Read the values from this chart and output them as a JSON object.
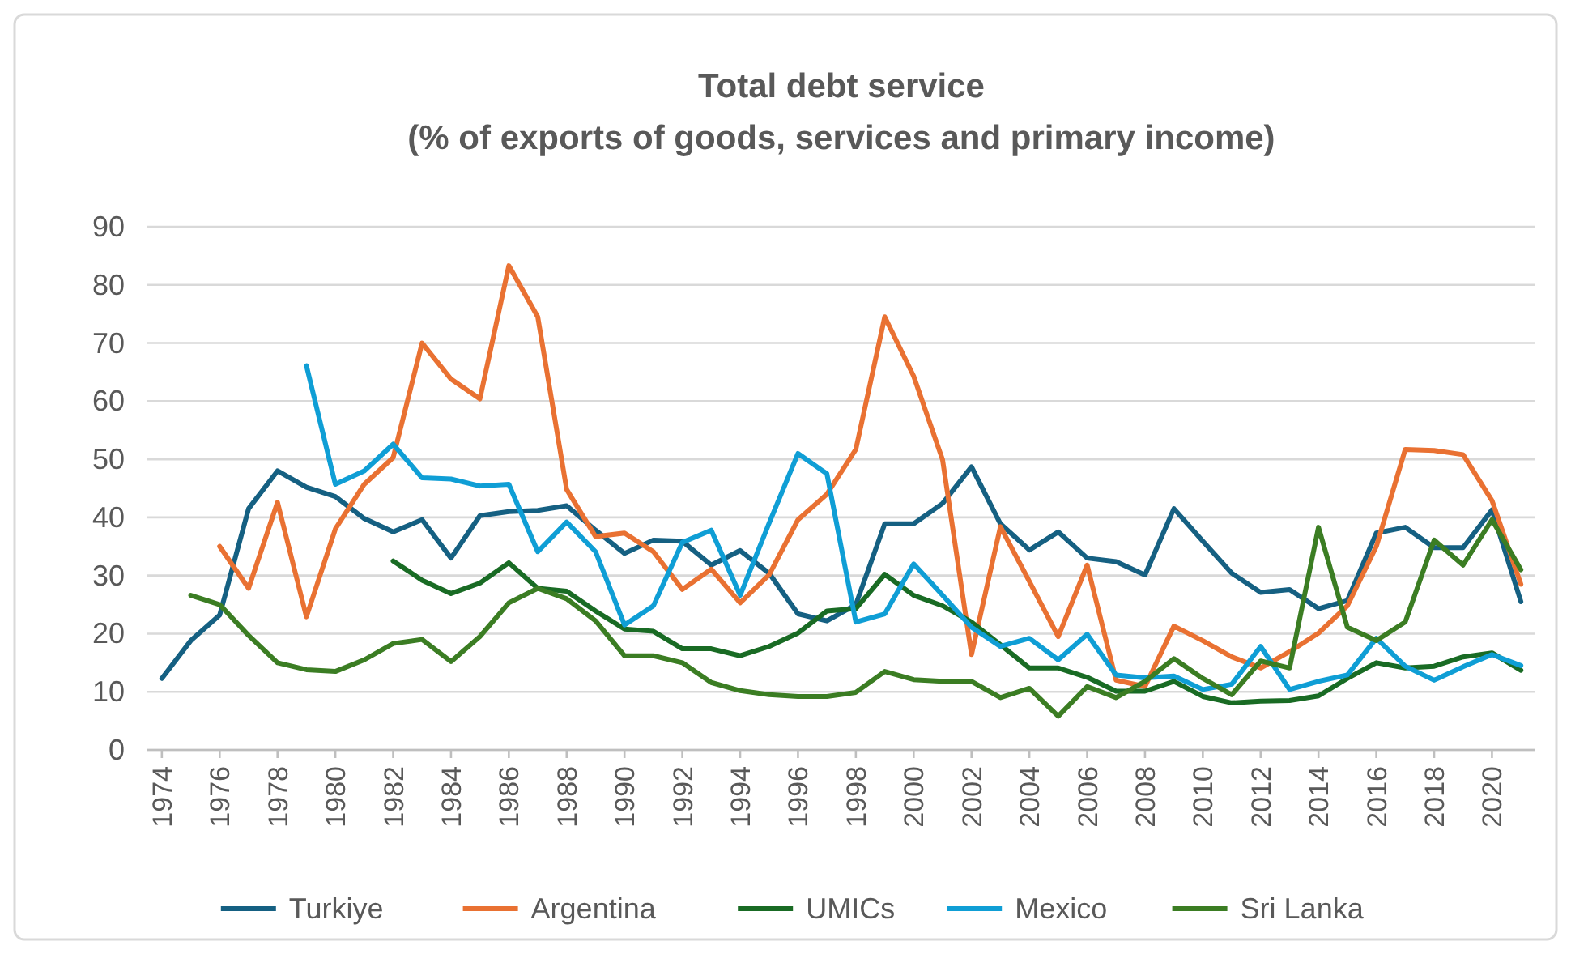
{
  "chart_data": {
    "type": "line",
    "title": "Total debt service\n(% of exports of goods, services and primary income)",
    "x": [
      1974,
      1975,
      1976,
      1977,
      1978,
      1979,
      1980,
      1981,
      1982,
      1983,
      1984,
      1985,
      1986,
      1987,
      1988,
      1989,
      1990,
      1991,
      1992,
      1993,
      1994,
      1995,
      1996,
      1997,
      1998,
      1999,
      2000,
      2001,
      2002,
      2003,
      2004,
      2005,
      2006,
      2007,
      2008,
      2009,
      2010,
      2011,
      2012,
      2013,
      2014,
      2015,
      2016,
      2017,
      2018,
      2019,
      2020,
      2021
    ],
    "xlim": [
      1973.5,
      2021.5
    ],
    "xticks": [
      1974,
      1976,
      1978,
      1980,
      1982,
      1984,
      1986,
      1988,
      1990,
      1992,
      1994,
      1996,
      1998,
      2000,
      2002,
      2004,
      2006,
      2008,
      2010,
      2012,
      2014,
      2016,
      2018,
      2020
    ],
    "ylim": [
      0,
      90
    ],
    "yticks": [
      0,
      10,
      20,
      30,
      40,
      50,
      60,
      70,
      80,
      90
    ],
    "grid": "y",
    "legend": "bottom",
    "marker": "none",
    "line_style": "solid",
    "series": [
      {
        "name": "Turkiye",
        "color": "#156082",
        "values": [
          12.3,
          18.8,
          23.2,
          41.5,
          48,
          45.2,
          43.6,
          39.8,
          37.5,
          39.6,
          33,
          40.3,
          41,
          41.2,
          42,
          37.8,
          33.8,
          36.1,
          35.9,
          31.8,
          34.3,
          30.4,
          23.4,
          22.2,
          25,
          38.9,
          38.9,
          42.4,
          48.7,
          38.9,
          34.4,
          37.5,
          33,
          32.4,
          30.1,
          41.5,
          35.9,
          30.4,
          27.1,
          27.6,
          24.3,
          25.7,
          37.3,
          38.3,
          34.8,
          34.8,
          41.3,
          25.5
        ]
      },
      {
        "name": "Argentina",
        "color": "#e97132",
        "values": [
          null,
          null,
          35,
          27.8,
          42.6,
          22.9,
          38,
          45.7,
          50.3,
          70,
          63.8,
          60.4,
          83.3,
          74.5,
          44.8,
          36.7,
          37.3,
          34.1,
          27.6,
          31.1,
          25.3,
          30.1,
          39.6,
          44,
          51.7,
          74.5,
          64.3,
          49.9,
          16.4,
          38.4,
          29,
          19.5,
          31.8,
          12,
          10.9,
          21.3,
          18.8,
          16,
          14.1,
          16.9,
          20.1,
          24.8,
          35,
          51.7,
          51.5,
          50.8,
          42.9,
          28.5
        ]
      },
      {
        "name": "UMICs",
        "color": "#196b24",
        "values": [
          null,
          null,
          null,
          null,
          null,
          null,
          null,
          null,
          32.5,
          29.2,
          26.9,
          28.7,
          32.2,
          27.8,
          27.3,
          23.9,
          20.8,
          20.4,
          17.4,
          17.4,
          16.2,
          17.8,
          20.1,
          23.9,
          24.3,
          30.2,
          26.6,
          24.8,
          22,
          18.1,
          14.1,
          14.1,
          12.5,
          10.1,
          10.1,
          11.8,
          9.2,
          8.1,
          8.4,
          8.5,
          9.3,
          12.3,
          15,
          14.1,
          14.4,
          16,
          16.7,
          13.7
        ]
      },
      {
        "name": "Mexico",
        "color": "#0f9ed5",
        "values": [
          null,
          null,
          null,
          null,
          null,
          66.1,
          45.7,
          48,
          52.6,
          46.8,
          46.6,
          45.4,
          45.7,
          34.1,
          39.2,
          34.1,
          21.5,
          24.8,
          35.7,
          37.8,
          26.6,
          39,
          51,
          47.5,
          22,
          23.4,
          32,
          26.6,
          21.1,
          17.8,
          19.2,
          15.5,
          19.9,
          12.9,
          12.4,
          12.7,
          10.4,
          11.3,
          17.8,
          10.4,
          11.8,
          12.9,
          19.2,
          14.4,
          12,
          14.3,
          16.4,
          14.5
        ]
      },
      {
        "name": "Sri Lanka",
        "color": "#3b7d23",
        "values": [
          null,
          26.6,
          25,
          19.7,
          15,
          13.8,
          13.5,
          15.5,
          18.3,
          19,
          15.2,
          19.5,
          25.3,
          27.8,
          26,
          22.2,
          16.2,
          16.2,
          15,
          11.6,
          10.2,
          9.5,
          9.2,
          9.2,
          9.9,
          13.5,
          12.1,
          11.8,
          11.8,
          9,
          10.6,
          5.8,
          10.9,
          9,
          11.8,
          15.7,
          12.3,
          9.5,
          15.3,
          14.1,
          38.3,
          21.1,
          18.8,
          22,
          36.1,
          31.8,
          39.6,
          31
        ]
      }
    ]
  }
}
